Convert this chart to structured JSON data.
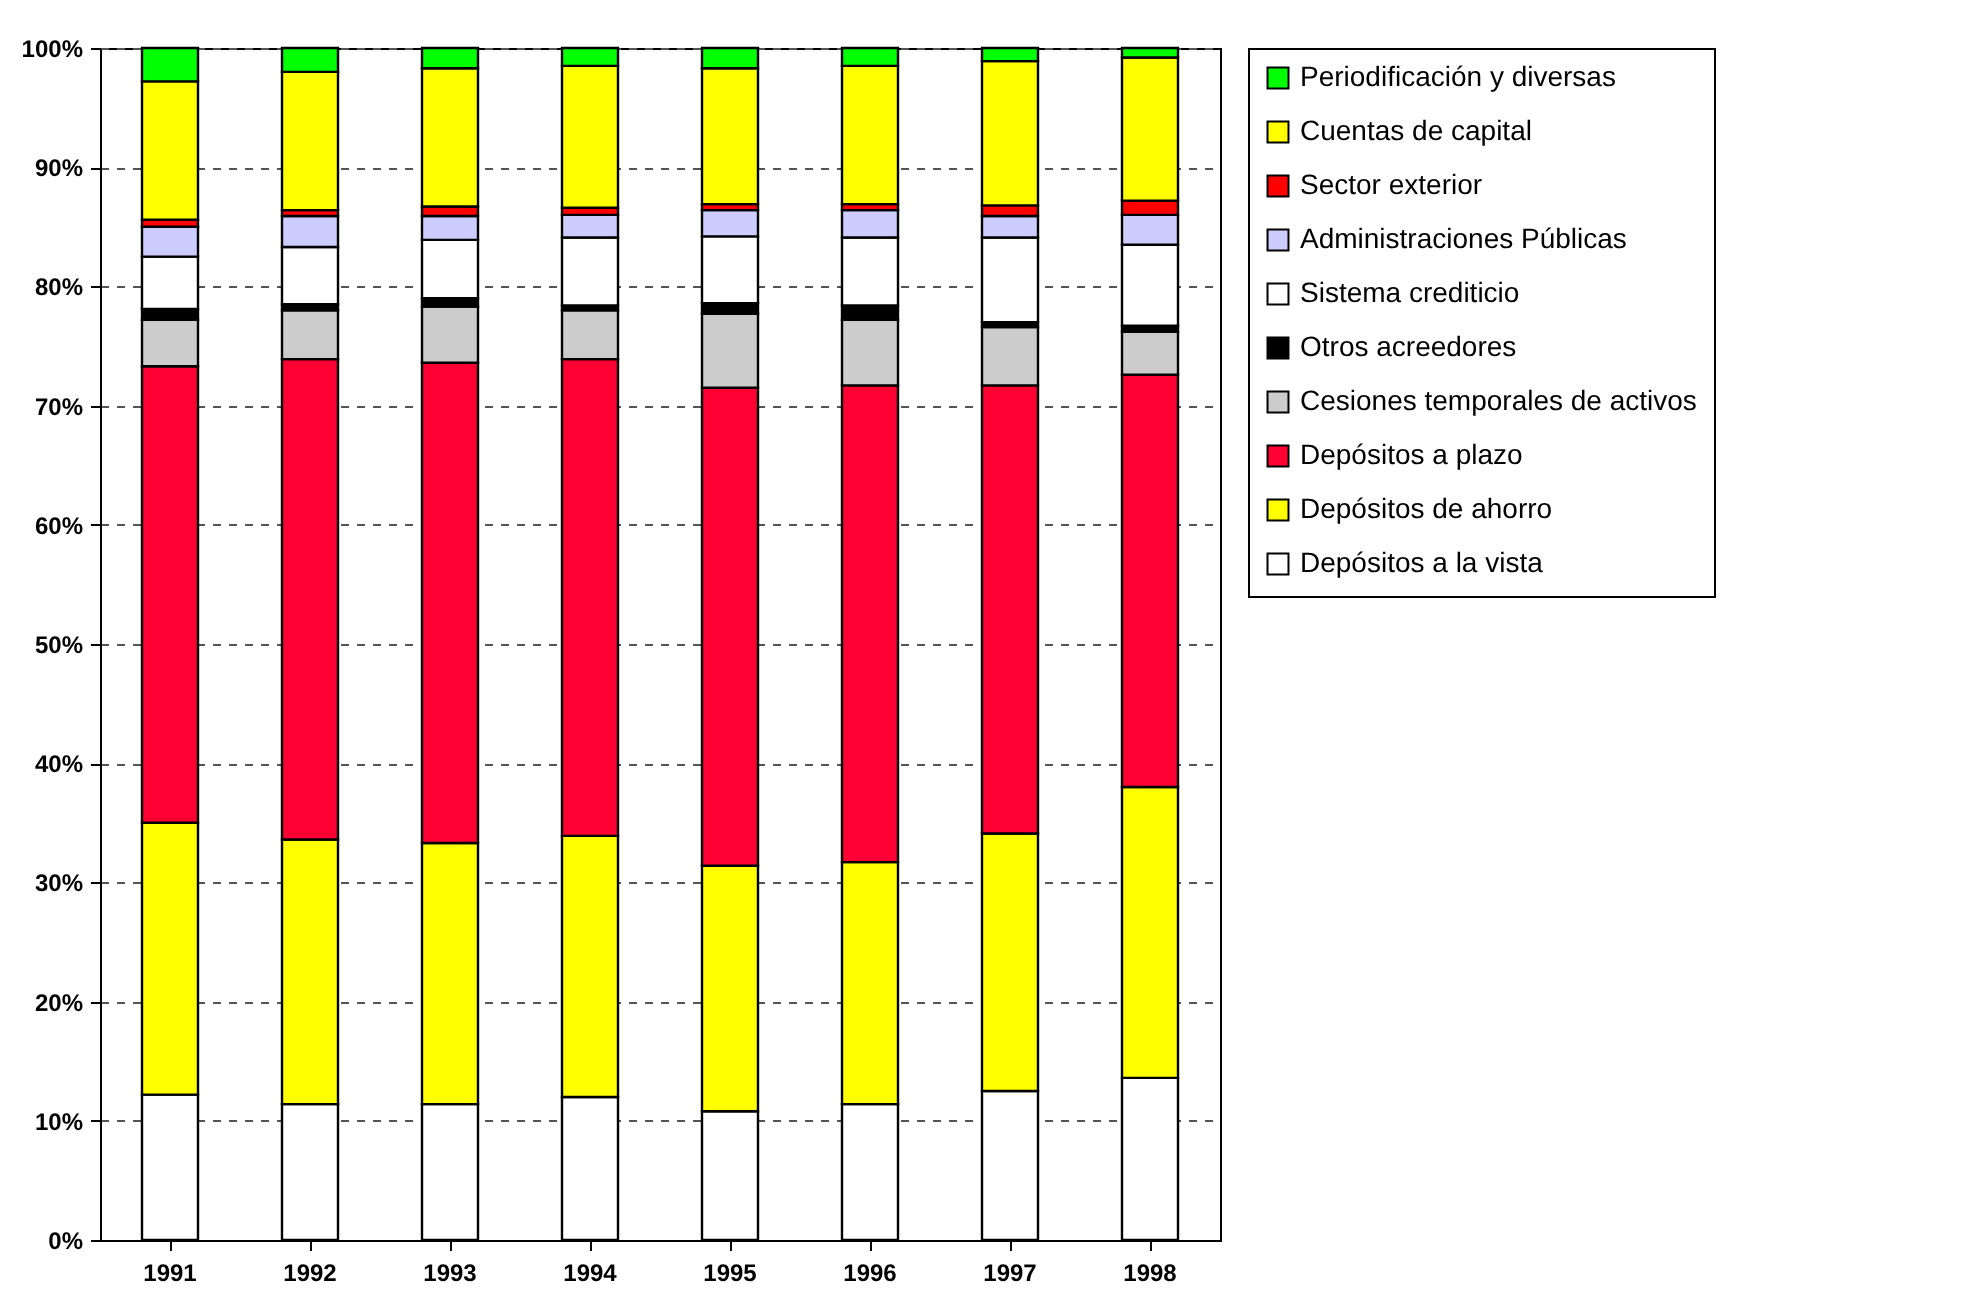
{
  "chart_data": {
    "type": "bar",
    "stacked": true,
    "categories": [
      "1991",
      "1992",
      "1993",
      "1994",
      "1995",
      "1996",
      "1997",
      "1998"
    ],
    "series": [
      {
        "name": "Depósitos a la vista",
        "color": "#ffffff",
        "values": [
          12.2,
          11.4,
          11.4,
          12.0,
          10.8,
          11.4,
          12.5,
          13.6
        ]
      },
      {
        "name": "Depósitos de ahorro",
        "color": "#ffff00",
        "values": [
          22.8,
          22.2,
          21.9,
          21.9,
          20.6,
          20.3,
          21.6,
          24.4
        ]
      },
      {
        "name": "Depósitos a plazo",
        "color": "#ff0033",
        "values": [
          38.3,
          40.3,
          40.3,
          40.0,
          40.1,
          40.0,
          37.6,
          34.6
        ]
      },
      {
        "name": "Cesiones temporales de activos",
        "color": "#cccccc",
        "values": [
          3.9,
          4.1,
          4.7,
          4.1,
          6.2,
          5.5,
          4.9,
          3.6
        ]
      },
      {
        "name": "Otros acreedores",
        "color": "#000000",
        "values": [
          0.9,
          0.5,
          0.7,
          0.4,
          0.9,
          1.2,
          0.4,
          0.5
        ]
      },
      {
        "name": "Sistema crediticio",
        "color": "#ffffff",
        "values": [
          4.4,
          4.8,
          4.9,
          5.7,
          5.6,
          5.7,
          7.1,
          6.8
        ]
      },
      {
        "name": "Administraciones Públicas",
        "color": "#ccccff",
        "values": [
          2.5,
          2.6,
          2.0,
          1.9,
          2.2,
          2.3,
          1.8,
          2.5
        ]
      },
      {
        "name": "Sector exterior",
        "color": "#ff0000",
        "values": [
          0.6,
          0.5,
          0.8,
          0.6,
          0.5,
          0.5,
          0.9,
          1.2
        ]
      },
      {
        "name": "Cuentas de capital",
        "color": "#ffff00",
        "values": [
          11.6,
          11.6,
          11.6,
          11.9,
          11.4,
          11.6,
          12.1,
          12.0
        ]
      },
      {
        "name": "Periodificación y diversas",
        "color": "#00ff00",
        "values": [
          2.8,
          2.0,
          1.7,
          1.5,
          1.7,
          1.5,
          1.1,
          0.8
        ]
      }
    ],
    "ylim": [
      0,
      100
    ],
    "yticks": [
      {
        "value": 0,
        "label": "0%"
      },
      {
        "value": 10,
        "label": "10%"
      },
      {
        "value": 20,
        "label": "20%"
      },
      {
        "value": 30,
        "label": "30%"
      },
      {
        "value": 40,
        "label": "40%"
      },
      {
        "value": 50,
        "label": "50%"
      },
      {
        "value": 60,
        "label": "60%"
      },
      {
        "value": 70,
        "label": "70%"
      },
      {
        "value": 80,
        "label": "80%"
      },
      {
        "value": 90,
        "label": "90%"
      },
      {
        "value": 100,
        "label": "100%"
      }
    ],
    "grid": "y",
    "legend": "right"
  }
}
